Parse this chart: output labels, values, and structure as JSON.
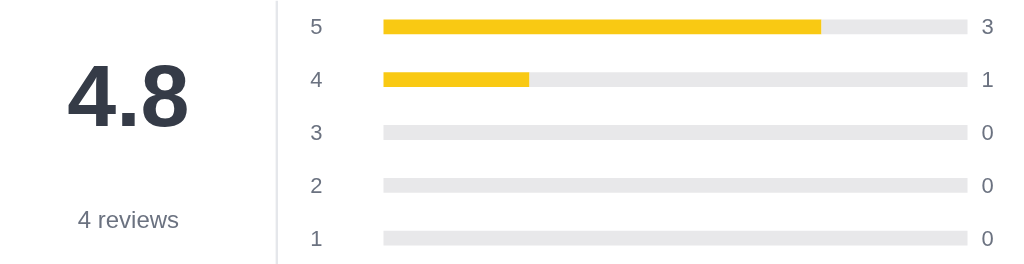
{
  "chart_data": [
    {
      "type": "other",
      "title": "4.8",
      "annotations": [
        "4 reviews"
      ]
    },
    {
      "type": "bar",
      "orientation": "horizontal",
      "stacked": true,
      "categories": [
        "5",
        "4",
        "3",
        "2",
        "1"
      ],
      "series": [
        {
          "color": "#f9c913",
          "values": [
            3,
            1,
            0,
            0,
            0
          ],
          "value_labels": [
            "3",
            "1",
            "0",
            "0",
            "0"
          ]
        },
        {
          "color": "#e8e8ea",
          "values": [
            1,
            3,
            4,
            4,
            4
          ]
        }
      ],
      "tick_labels": "y",
      "grid": false
    }
  ]
}
